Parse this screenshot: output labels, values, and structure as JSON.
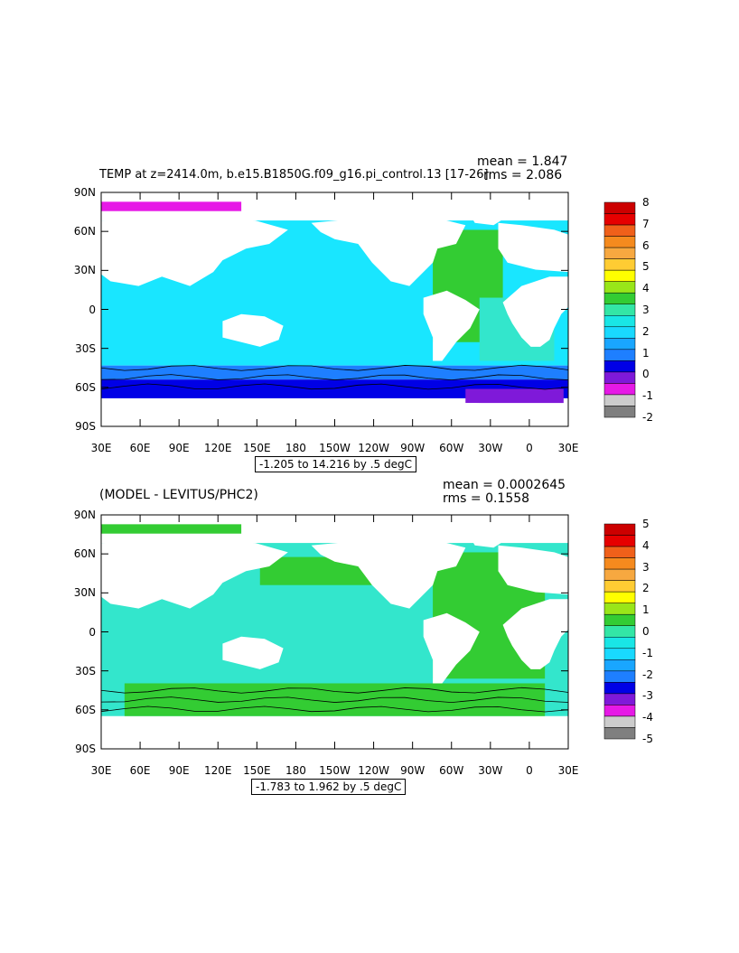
{
  "chart_data": [
    {
      "type": "heatmap",
      "title": "TEMP at z=2414.0m, b.e15.B1850G.f09_g16.pi_control.13 [17-26]",
      "stats": {
        "mean": "mean = 1.847",
        "rms": "rms = 2.086"
      },
      "contour_range": "-1.205 to 14.216 by .5 degC",
      "x_ticks": [
        "30E",
        "60E",
        "90E",
        "120E",
        "150E",
        "180",
        "150W",
        "120W",
        "90W",
        "60W",
        "30W",
        "0",
        "30E"
      ],
      "y_ticks": [
        "90N",
        "60N",
        "30N",
        "0",
        "30S",
        "60S",
        "90S"
      ],
      "colorbar_ticks": [
        "8",
        "7",
        "6",
        "5",
        "4",
        "3",
        "2",
        "1",
        "0",
        "-1",
        "-2"
      ],
      "colorbar_colors": [
        "#cc0000",
        "#e60000",
        "#f0601a",
        "#f58a1e",
        "#f7a840",
        "#ffcc33",
        "#ffff00",
        "#99e619",
        "#33cc33",
        "#33e6a6",
        "#19e6e6",
        "#19d9ff",
        "#19a6ff",
        "#1e7fff",
        "#0000e6",
        "#7f19d9",
        "#e619e6",
        "#cccccc",
        "#7f7f7f"
      ],
      "land_color": "#ffffff",
      "ocean_dominant_color": "#19e6ff",
      "ylim": [
        "90S",
        "90N"
      ],
      "xlim": [
        "30E",
        "30E"
      ]
    },
    {
      "type": "heatmap",
      "title": "(MODEL - LEVITUS/PHC2)",
      "stats": {
        "mean": "mean = 0.0002645",
        "rms": "rms = 0.1558"
      },
      "contour_range": "-1.783 to 1.962 by .5 degC",
      "x_ticks": [
        "30E",
        "60E",
        "90E",
        "120E",
        "150E",
        "180",
        "150W",
        "120W",
        "90W",
        "60W",
        "30W",
        "0",
        "30E"
      ],
      "y_ticks": [
        "90N",
        "60N",
        "30N",
        "0",
        "30S",
        "60S",
        "90S"
      ],
      "colorbar_ticks": [
        "5",
        "4",
        "3",
        "2",
        "1",
        "0",
        "-1",
        "-2",
        "-3",
        "-4",
        "-5"
      ],
      "colorbar_colors": [
        "#cc0000",
        "#e60000",
        "#f0601a",
        "#f58a1e",
        "#f7a840",
        "#ffcc33",
        "#ffff00",
        "#99e619",
        "#33cc33",
        "#33e6a6",
        "#19e6e6",
        "#19d9ff",
        "#19a6ff",
        "#1e7fff",
        "#0000e6",
        "#7f19d9",
        "#e619e6",
        "#cccccc",
        "#7f7f7f"
      ],
      "land_color": "#ffffff",
      "ocean_dominant_color": "#33e6cc",
      "ylim": [
        "90S",
        "90N"
      ],
      "xlim": [
        "30E",
        "30E"
      ]
    }
  ]
}
